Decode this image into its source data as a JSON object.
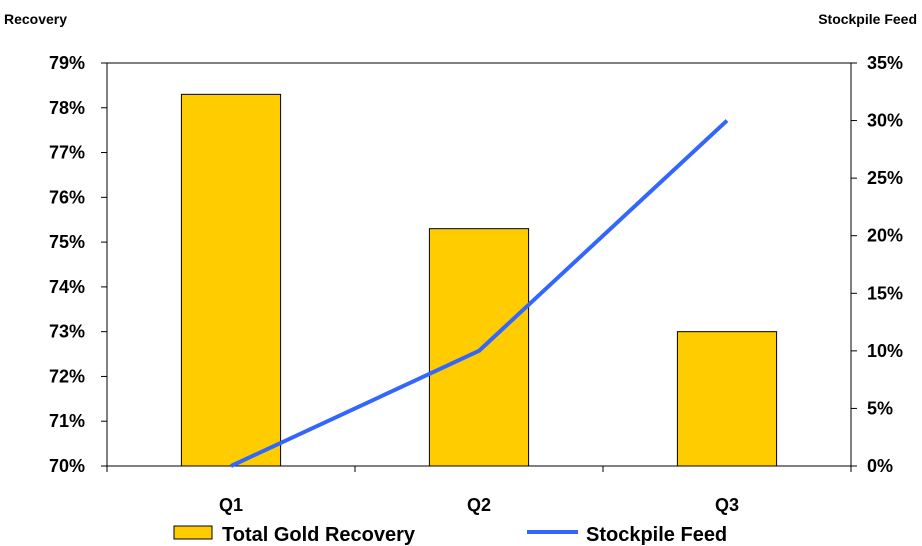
{
  "chart_data": {
    "type": "bar+line",
    "categories": [
      "Q1",
      "Q2",
      "Q3"
    ],
    "left_axis": {
      "title": "Recovery",
      "min": 70,
      "max": 79,
      "step": 1,
      "tick_labels": [
        "70%",
        "71%",
        "72%",
        "73%",
        "74%",
        "75%",
        "76%",
        "77%",
        "78%",
        "79%"
      ]
    },
    "right_axis": {
      "title": "Stockpile Feed",
      "min": 0,
      "max": 35,
      "step": 5,
      "tick_labels": [
        "0%",
        "5%",
        "10%",
        "15%",
        "20%",
        "25%",
        "30%",
        "35%"
      ]
    },
    "series": [
      {
        "name": "Total Gold Recovery",
        "type": "bar",
        "axis": "left",
        "values": [
          78.3,
          75.3,
          73.0
        ],
        "color": "#FFCC00"
      },
      {
        "name": "Stockpile Feed",
        "type": "line",
        "axis": "right",
        "values": [
          0.0,
          10.0,
          30.0
        ],
        "color": "#3366FF"
      }
    ],
    "grid": false,
    "legend_position": "bottom"
  }
}
